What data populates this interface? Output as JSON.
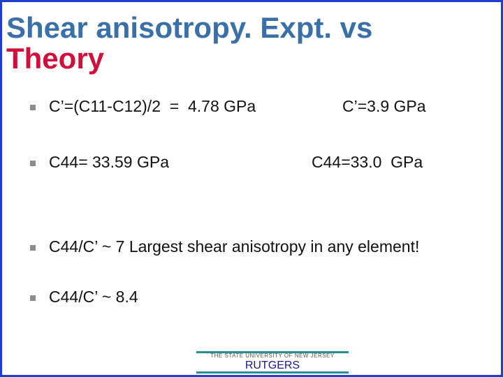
{
  "title": {
    "line1": "Shear anisotropy. Expt. vs",
    "line2": "Theory"
  },
  "bullets": [
    {
      "text": "C’=(C11-C12)/2  =  4.78 GPa",
      "right": "C’=3.9 GPa"
    },
    {
      "text": "C44= 33.59 GPa",
      "right": "C44=33.0  GPa"
    },
    {
      "text": "C44/C’ ~ 7 Largest shear anisotropy  in any element!"
    },
    {
      "text": "C44/C’ ~ 8.4"
    }
  ],
  "logo": {
    "subtitle": "THE STATE UNIVERSITY OF NEW JERSEY",
    "name": "RUTGERS"
  }
}
